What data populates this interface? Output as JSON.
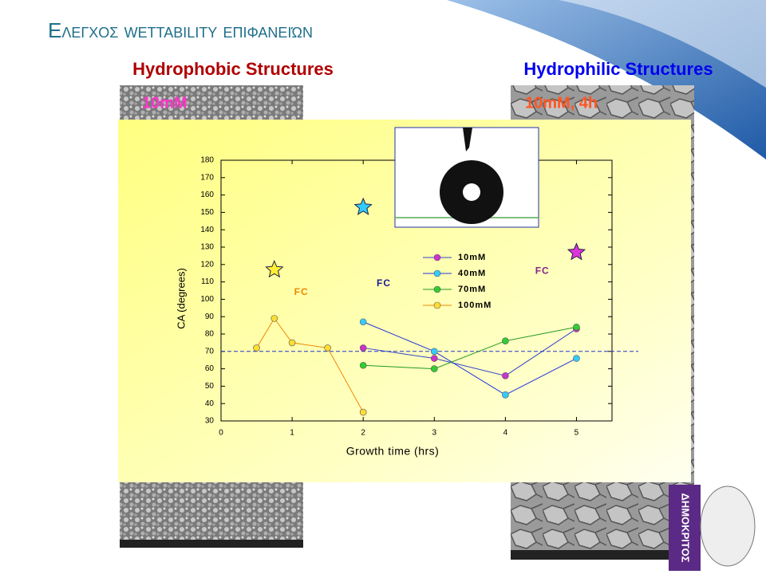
{
  "slide": {
    "title": "Ελεγχος wettability επιφανειών",
    "left_heading": "Hydrophobic Structures",
    "right_heading": "Hydrophilic Structures",
    "left_image_label": "10mM",
    "right_image_label": "10mM, 4h",
    "logo_text": "ΔΗΜΟΚΡΙΤΟΣ"
  },
  "chart_data": {
    "type": "line",
    "xlabel": "Growth time (hrs)",
    "ylabel": "CA (degrees)",
    "xlim": [
      0,
      5.5
    ],
    "ylim": [
      30,
      180
    ],
    "xticks": [
      0,
      1,
      2,
      3,
      4,
      5
    ],
    "yticks": [
      30,
      40,
      50,
      60,
      70,
      80,
      90,
      100,
      110,
      120,
      130,
      140,
      150,
      160,
      170,
      180
    ],
    "legend": "center",
    "series": [
      {
        "name": "10mM",
        "color": "#cc33cc",
        "line_color": "#3344cc",
        "x": [
          2,
          3,
          4,
          5
        ],
        "values": [
          72,
          66,
          56,
          83
        ]
      },
      {
        "name": "40mM",
        "color": "#33ccff",
        "line_color": "#2233dd",
        "x": [
          2,
          3,
          4,
          5
        ],
        "values": [
          87,
          70,
          45,
          66
        ]
      },
      {
        "name": "70mM",
        "color": "#33cc33",
        "line_color": "#229922",
        "x": [
          2,
          3,
          4,
          5
        ],
        "values": [
          62,
          60,
          76,
          84
        ]
      },
      {
        "name": "100mM",
        "color": "#ffdd33",
        "line_color": "#ee8800",
        "x": [
          0.5,
          0.75,
          1,
          1.5,
          2
        ],
        "values": [
          72,
          89,
          75,
          72,
          35
        ]
      }
    ],
    "reference_line": 70,
    "markers": [
      {
        "x": 0.75,
        "y": 117,
        "color": "#ffee33"
      },
      {
        "x": 2,
        "y": 153,
        "color": "#33ccff"
      },
      {
        "x": 5,
        "y": 127,
        "color": "#dd33dd"
      }
    ],
    "annotations": [
      {
        "text": "FC",
        "x": 1.13,
        "y": 104,
        "color": "#ee8800"
      },
      {
        "text": "FC",
        "x": 2.29,
        "y": 109,
        "color": "#1a1a99"
      },
      {
        "text": "FC",
        "x": 4.52,
        "y": 116,
        "color": "#882288"
      }
    ]
  }
}
